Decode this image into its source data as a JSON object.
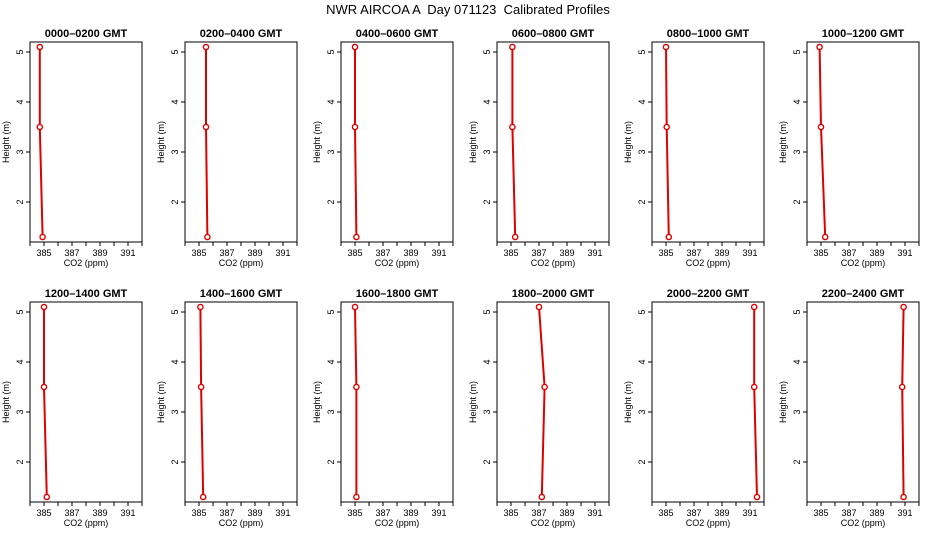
{
  "title": "NWR AIRCOA A  Day 071123  Calibrated Profiles",
  "colors": {
    "line": "#dd0000",
    "marker": "#dd0000",
    "frame": "#000000"
  },
  "chart_data": [
    {
      "type": "line",
      "title": "0000–0200 GMT",
      "xlabel": "CO2 (ppm)",
      "ylabel": "Height (m)",
      "xlim": [
        384,
        392
      ],
      "ylim": [
        1.2,
        5.2
      ],
      "xticks": [
        "385",
        "387",
        "389",
        "391"
      ],
      "yticks": [
        "2",
        "3",
        "4",
        "5"
      ],
      "grid": false,
      "x": [
        384.7,
        384.7,
        384.9
      ],
      "y": [
        5.1,
        3.5,
        1.3
      ]
    },
    {
      "type": "line",
      "title": "0200–0400 GMT",
      "xlabel": "CO2 (ppm)",
      "ylabel": "Height (m)",
      "xlim": [
        384,
        392
      ],
      "ylim": [
        1.2,
        5.2
      ],
      "xticks": [
        "385",
        "387",
        "389",
        "391"
      ],
      "yticks": [
        "2",
        "3",
        "4",
        "5"
      ],
      "grid": false,
      "x": [
        385.5,
        385.5,
        385.6
      ],
      "y": [
        5.1,
        3.5,
        1.3
      ]
    },
    {
      "type": "line",
      "title": "0400–0600 GMT",
      "xlabel": "CO2 (ppm)",
      "ylabel": "Height (m)",
      "xlim": [
        384,
        392
      ],
      "ylim": [
        1.2,
        5.2
      ],
      "xticks": [
        "385",
        "387",
        "389",
        "391"
      ],
      "yticks": [
        "2",
        "3",
        "4",
        "5"
      ],
      "grid": false,
      "x": [
        385.0,
        385.0,
        385.1
      ],
      "y": [
        5.1,
        3.5,
        1.3
      ]
    },
    {
      "type": "line",
      "title": "0600–0800 GMT",
      "xlabel": "CO2 (ppm)",
      "ylabel": "Height (m)",
      "xlim": [
        384,
        392
      ],
      "ylim": [
        1.2,
        5.2
      ],
      "xticks": [
        "385",
        "387",
        "389",
        "391"
      ],
      "yticks": [
        "2",
        "3",
        "4",
        "5"
      ],
      "grid": false,
      "x": [
        385.1,
        385.1,
        385.3
      ],
      "y": [
        5.1,
        3.5,
        1.3
      ]
    },
    {
      "type": "line",
      "title": "0800–1000 GMT",
      "xlabel": "CO2 (ppm)",
      "ylabel": "Height (m)",
      "xlim": [
        384,
        392
      ],
      "ylim": [
        1.2,
        5.2
      ],
      "xticks": [
        "385",
        "387",
        "389",
        "391"
      ],
      "yticks": [
        "2",
        "3",
        "4",
        "5"
      ],
      "grid": false,
      "x": [
        385.0,
        385.05,
        385.2
      ],
      "y": [
        5.1,
        3.5,
        1.3
      ]
    },
    {
      "type": "line",
      "title": "1000–1200 GMT",
      "xlabel": "CO2 (ppm)",
      "ylabel": "Height (m)",
      "xlim": [
        384,
        392
      ],
      "ylim": [
        1.2,
        5.2
      ],
      "xticks": [
        "385",
        "387",
        "389",
        "391"
      ],
      "yticks": [
        "2",
        "3",
        "4",
        "5"
      ],
      "grid": false,
      "x": [
        384.9,
        385.0,
        385.3
      ],
      "y": [
        5.1,
        3.5,
        1.3
      ]
    },
    {
      "type": "line",
      "title": "1200–1400 GMT",
      "xlabel": "CO2 (ppm)",
      "ylabel": "Height (m)",
      "xlim": [
        384,
        392
      ],
      "ylim": [
        1.2,
        5.2
      ],
      "xticks": [
        "385",
        "387",
        "389",
        "391"
      ],
      "yticks": [
        "2",
        "3",
        "4",
        "5"
      ],
      "grid": false,
      "x": [
        385.0,
        385.0,
        385.2
      ],
      "y": [
        5.1,
        3.5,
        1.3
      ]
    },
    {
      "type": "line",
      "title": "1400–1600 GMT",
      "xlabel": "CO2 (ppm)",
      "ylabel": "Height (m)",
      "xlim": [
        384,
        392
      ],
      "ylim": [
        1.2,
        5.2
      ],
      "xticks": [
        "385",
        "387",
        "389",
        "391"
      ],
      "yticks": [
        "2",
        "3",
        "4",
        "5"
      ],
      "grid": false,
      "x": [
        385.1,
        385.15,
        385.3
      ],
      "y": [
        5.1,
        3.5,
        1.3
      ]
    },
    {
      "type": "line",
      "title": "1600–1800 GMT",
      "xlabel": "CO2 (ppm)",
      "ylabel": "Height (m)",
      "xlim": [
        384,
        392
      ],
      "ylim": [
        1.2,
        5.2
      ],
      "xticks": [
        "385",
        "387",
        "389",
        "391"
      ],
      "yticks": [
        "2",
        "3",
        "4",
        "5"
      ],
      "grid": false,
      "x": [
        385.0,
        385.1,
        385.1
      ],
      "y": [
        5.1,
        3.5,
        1.3
      ]
    },
    {
      "type": "line",
      "title": "1800–2000 GMT",
      "xlabel": "CO2 (ppm)",
      "ylabel": "Height (m)",
      "xlim": [
        384,
        392
      ],
      "ylim": [
        1.2,
        5.2
      ],
      "xticks": [
        "385",
        "387",
        "389",
        "391"
      ],
      "yticks": [
        "2",
        "3",
        "4",
        "5"
      ],
      "grid": false,
      "x": [
        387.0,
        387.4,
        387.2
      ],
      "y": [
        5.1,
        3.5,
        1.3
      ]
    },
    {
      "type": "line",
      "title": "2000–2200 GMT",
      "xlabel": "CO2 (ppm)",
      "ylabel": "Height (m)",
      "xlim": [
        384,
        392
      ],
      "ylim": [
        1.2,
        5.2
      ],
      "xticks": [
        "385",
        "387",
        "389",
        "391"
      ],
      "yticks": [
        "2",
        "3",
        "4",
        "5"
      ],
      "grid": false,
      "x": [
        391.3,
        391.3,
        391.5
      ],
      "y": [
        5.1,
        3.5,
        1.3
      ]
    },
    {
      "type": "line",
      "title": "2200–2400 GMT",
      "xlabel": "CO2 (ppm)",
      "ylabel": "Height (m)",
      "xlim": [
        384,
        392
      ],
      "ylim": [
        1.2,
        5.2
      ],
      "xticks": [
        "385",
        "387",
        "389",
        "391"
      ],
      "yticks": [
        "2",
        "3",
        "4",
        "5"
      ],
      "grid": false,
      "x": [
        390.9,
        390.8,
        390.9
      ],
      "y": [
        5.1,
        3.5,
        1.3
      ]
    }
  ]
}
